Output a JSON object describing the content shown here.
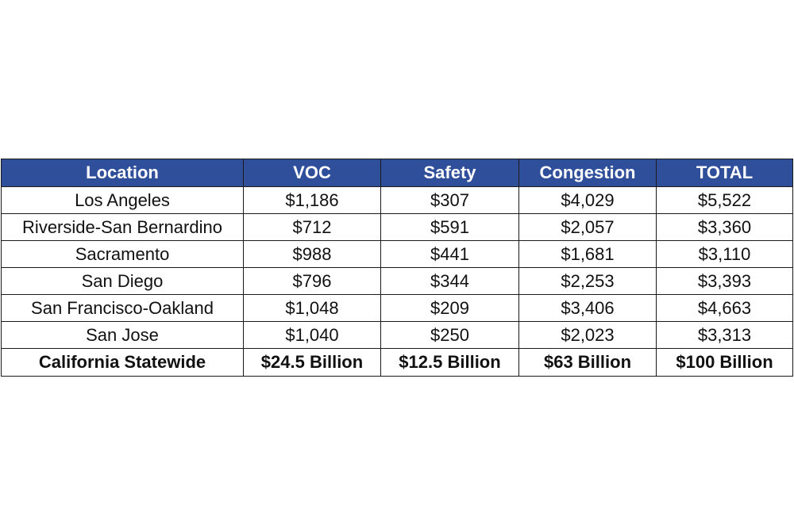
{
  "chart_data": {
    "type": "table",
    "columns": [
      "Location",
      "VOC",
      "Safety",
      "Congestion",
      "TOTAL"
    ],
    "rows": [
      [
        "Los Angeles",
        "$1,186",
        "$307",
        "$4,029",
        "$5,522"
      ],
      [
        "Riverside-San Bernardino",
        "$712",
        "$591",
        "$2,057",
        "$3,360"
      ],
      [
        "Sacramento",
        "$988",
        "$441",
        "$1,681",
        "$3,110"
      ],
      [
        "San Diego",
        "$796",
        "$344",
        "$2,253",
        "$3,393"
      ],
      [
        "San Francisco-Oakland",
        "$1,048",
        "$209",
        "$3,406",
        "$4,663"
      ],
      [
        "San Jose",
        "$1,040",
        "$250",
        "$2,023",
        "$3,313"
      ]
    ],
    "total_row": [
      "California Statewide",
      "$24.5 Billion",
      "$12.5 Billion",
      "$63 Billion",
      "$100 Billion"
    ],
    "colors": {
      "header_background": "#2f4f9b",
      "header_text": "#ffffff",
      "border": "#1a1a1a"
    }
  }
}
